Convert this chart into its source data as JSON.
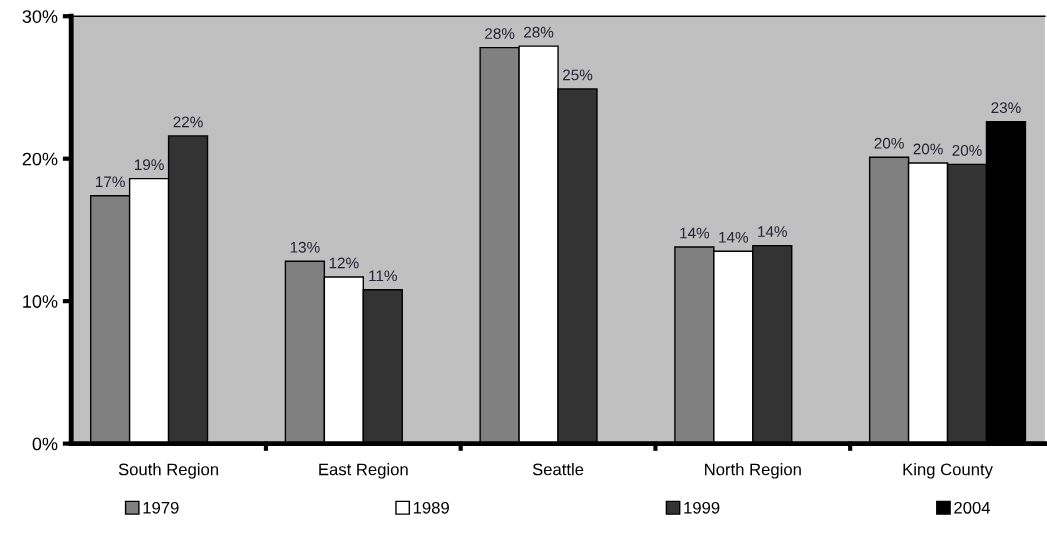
{
  "chart_data": {
    "type": "bar",
    "categories": [
      "South Region",
      "East Region",
      "Seattle",
      "North Region",
      "King County"
    ],
    "series": [
      {
        "name": "1979",
        "color": "#808080",
        "values": [
          17.4,
          12.8,
          27.8,
          13.8,
          20.1
        ],
        "value_labels": [
          "17%",
          "13%",
          "28%",
          "14%",
          "20%"
        ]
      },
      {
        "name": "1989",
        "color": "#ffffff",
        "values": [
          18.6,
          11.7,
          27.9,
          13.5,
          19.7
        ],
        "value_labels": [
          "19%",
          "12%",
          "28%",
          "14%",
          "20%"
        ]
      },
      {
        "name": "1999",
        "color": "#333333",
        "values": [
          21.6,
          10.8,
          24.9,
          13.9,
          19.6
        ],
        "value_labels": [
          "22%",
          "11%",
          "25%",
          "14%",
          "20%"
        ]
      },
      {
        "name": "2004",
        "color": "#000000",
        "values": [
          null,
          null,
          null,
          null,
          22.6
        ],
        "value_labels": [
          null,
          null,
          null,
          null,
          "23%"
        ]
      }
    ],
    "ylim": [
      0,
      30
    ],
    "yticks": [
      {
        "value": 0,
        "label": "0%"
      },
      {
        "value": 10,
        "label": "10%"
      },
      {
        "value": 20,
        "label": "20%"
      },
      {
        "value": 30,
        "label": "30%"
      }
    ],
    "grid": false,
    "legend": "bottom"
  }
}
